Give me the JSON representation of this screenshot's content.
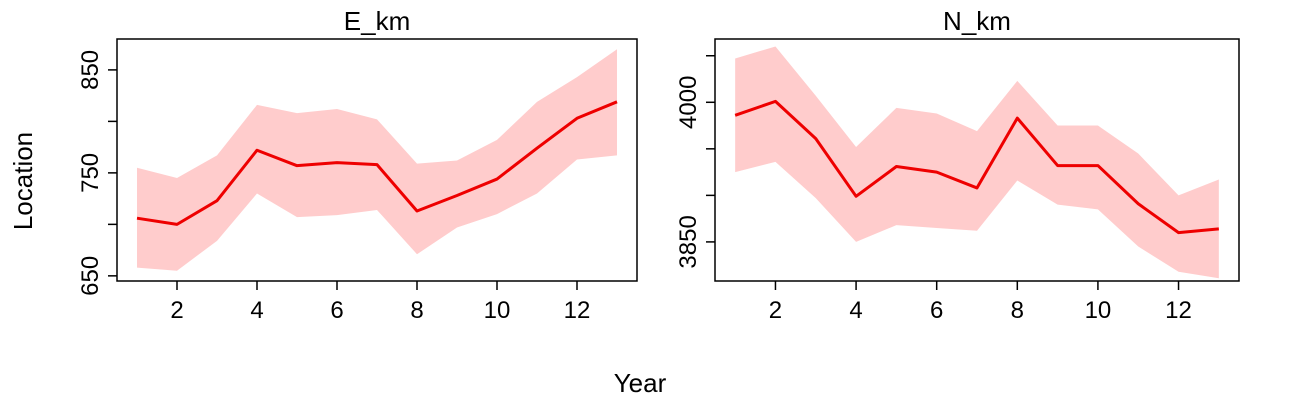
{
  "chart_data": [
    {
      "type": "line",
      "title": "E_km",
      "x": [
        1,
        2,
        3,
        4,
        5,
        6,
        7,
        8,
        9,
        10,
        11,
        12,
        13
      ],
      "series": [
        {
          "values": [
            706,
            700,
            723,
            772,
            757,
            760,
            758,
            713,
            728,
            744,
            774,
            803,
            819
          ],
          "lower": [
            658,
            655,
            684,
            730,
            707,
            709,
            714,
            671,
            697,
            710,
            730,
            763,
            767
          ],
          "upper": [
            755,
            745,
            767,
            816,
            808,
            812,
            802,
            759,
            762,
            782,
            819,
            843,
            870
          ]
        }
      ],
      "xlim": [
        0.5,
        13.5
      ],
      "ylim": [
        645,
        880
      ],
      "xticks": [
        2,
        4,
        6,
        8,
        10,
        12
      ],
      "xtick_labels": [
        "2",
        "4",
        "6",
        "8",
        "10",
        "12"
      ],
      "yticks": [
        650,
        750,
        850
      ],
      "ytick_labels": [
        "650",
        "750",
        "850"
      ],
      "yminor_ticks": [
        700,
        800
      ],
      "grid": false
    },
    {
      "type": "line",
      "title": "N_km",
      "x": [
        1,
        2,
        3,
        4,
        5,
        6,
        7,
        8,
        9,
        10,
        11,
        12,
        13
      ],
      "series": [
        {
          "values": [
            3986,
            4001,
            3961,
            3899,
            3931,
            3925,
            3908,
            3983,
            3932,
            3932,
            3891,
            3860,
            3864
          ],
          "lower": [
            3925,
            3936,
            3897,
            3850,
            3868,
            3865,
            3862,
            3916,
            3890,
            3885,
            3845,
            3818,
            3811
          ],
          "upper": [
            4047,
            4060,
            4007,
            3952,
            3994,
            3988,
            3969,
            4023,
            3975,
            3975,
            3945,
            3900,
            3917
          ]
        }
      ],
      "xlim": [
        0.5,
        13.5
      ],
      "ylim": [
        3808,
        4068
      ],
      "xticks": [
        2,
        4,
        6,
        8,
        10,
        12
      ],
      "xtick_labels": [
        "2",
        "4",
        "6",
        "8",
        "10",
        "12"
      ],
      "yticks": [
        3850,
        4000
      ],
      "ytick_labels": [
        "3850",
        "4000"
      ],
      "yminor_ticks": [
        3900,
        3950,
        4050
      ],
      "grid": false
    }
  ],
  "axis_titles": {
    "x": "Year",
    "y": "Location"
  },
  "colors": {
    "line": "#ee0000",
    "band": "#ffcccc",
    "frame": "#000000"
  }
}
